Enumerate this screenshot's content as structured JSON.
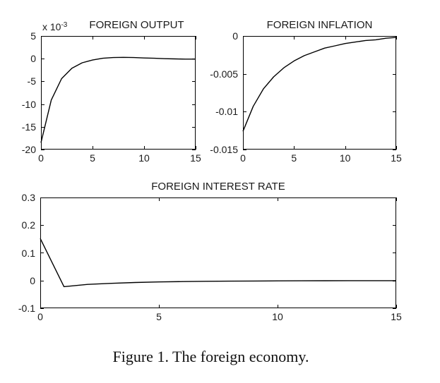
{
  "figure": {
    "caption": "Figure 1. The foreign economy."
  },
  "colors": {
    "line": "#000000",
    "axis": "#000000",
    "background": "#ffffff"
  },
  "chart_data": [
    {
      "id": "foreign-output",
      "type": "line",
      "title": "FOREIGN OUTPUT",
      "y_scale_label": {
        "base": "x 10",
        "exponent": "-3"
      },
      "y_unit_multiplier": 0.001,
      "xlim": [
        0,
        15
      ],
      "ylim": [
        -20,
        5
      ],
      "grid": false,
      "legend": null,
      "xticks": {
        "values": [
          0,
          5,
          10,
          15
        ],
        "labels": [
          "0",
          "5",
          "10",
          "15"
        ]
      },
      "yticks": {
        "values": [
          5,
          0,
          -5,
          -10,
          -15,
          -20
        ],
        "labels": [
          "5",
          "0",
          "-5",
          "-10",
          "-15",
          "-20"
        ]
      },
      "x": [
        0,
        1,
        2,
        3,
        4,
        5,
        6,
        7,
        8,
        9,
        10,
        11,
        12,
        13,
        14,
        15
      ],
      "y": [
        -18.5,
        -9.1,
        -4.4,
        -2.1,
        -0.9,
        -0.3,
        0.1,
        0.25,
        0.3,
        0.25,
        0.15,
        0.1,
        0.0,
        -0.05,
        -0.1,
        -0.1
      ]
    },
    {
      "id": "foreign-inflation",
      "type": "line",
      "title": "FOREIGN INFLATION",
      "y_scale_label": null,
      "y_unit_multiplier": 1,
      "xlim": [
        0,
        15
      ],
      "ylim": [
        -0.015,
        0
      ],
      "grid": false,
      "legend": null,
      "xticks": {
        "values": [
          0,
          5,
          10,
          15
        ],
        "labels": [
          "0",
          "5",
          "10",
          "15"
        ]
      },
      "yticks": {
        "values": [
          0,
          -0.005,
          -0.01,
          -0.015
        ],
        "labels": [
          "0",
          "-0.005",
          "-0.01",
          "-0.015"
        ]
      },
      "x": [
        0,
        1,
        2,
        3,
        4,
        5,
        6,
        7,
        8,
        9,
        10,
        11,
        12,
        13,
        14,
        15
      ],
      "y": [
        -0.0126,
        -0.0093,
        -0.007,
        -0.0054,
        -0.0042,
        -0.0033,
        -0.0026,
        -0.0021,
        -0.0016,
        -0.0013,
        -0.001,
        -0.0008,
        -0.0006,
        -0.0005,
        -0.0003,
        -0.0002
      ]
    },
    {
      "id": "foreign-interest-rate",
      "type": "line",
      "title": "FOREIGN INTEREST RATE",
      "y_scale_label": null,
      "y_unit_multiplier": 1,
      "xlim": [
        0,
        15
      ],
      "ylim": [
        -0.1,
        0.3
      ],
      "grid": false,
      "legend": null,
      "xticks": {
        "values": [
          0,
          5,
          10,
          15
        ],
        "labels": [
          "0",
          "5",
          "10",
          "15"
        ]
      },
      "yticks": {
        "values": [
          0.3,
          0.2,
          0.1,
          0,
          -0.1
        ],
        "labels": [
          "0.3",
          "0.2",
          "0.1",
          "0",
          "-0.1"
        ]
      },
      "x": [
        0,
        1,
        2,
        3,
        4,
        5,
        6,
        7,
        8,
        9,
        10,
        11,
        12,
        13,
        14,
        15
      ],
      "y": [
        0.152,
        -0.022,
        -0.014,
        -0.01,
        -0.007,
        -0.005,
        -0.0037,
        -0.0028,
        -0.0021,
        -0.0016,
        -0.0012,
        -0.0009,
        -0.0007,
        -0.0005,
        -0.0004,
        -0.0003
      ]
    }
  ]
}
